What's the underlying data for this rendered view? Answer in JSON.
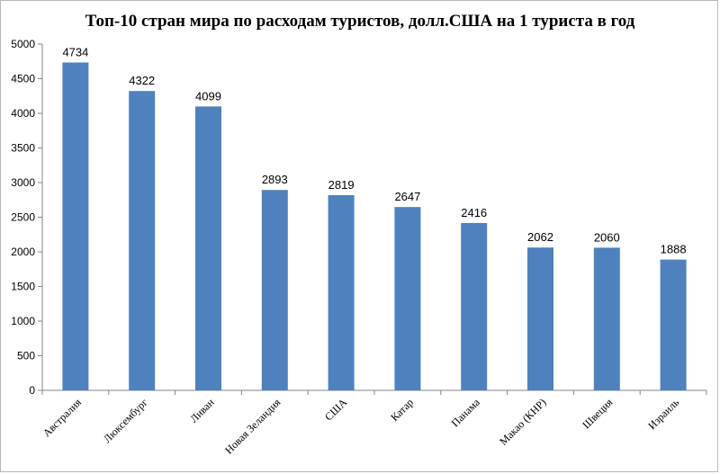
{
  "chart_data": {
    "type": "bar",
    "title": "Топ-10 стран мира по расходам туристов, долл.США на 1 туриста в год",
    "categories": [
      "Австралия",
      "Люксембург",
      "Ливан",
      "Новая Зеландия",
      "США",
      "Катар",
      "Панама",
      "Макао (КНР)",
      "Швеция",
      "Израиль"
    ],
    "values": [
      4734,
      4322,
      4099,
      2893,
      2819,
      2647,
      2416,
      2062,
      2060,
      1888
    ],
    "data_labels": [
      "4734",
      "4322",
      "4099",
      "2893",
      "2819",
      "2647",
      "2416",
      "2062",
      "2060",
      "1888"
    ],
    "ylim": [
      0,
      5000
    ],
    "yticks": [
      "0",
      "500",
      "1000",
      "1500",
      "2000",
      "2500",
      "3000",
      "3500",
      "4000",
      "4500",
      "5000"
    ],
    "xlabel": "",
    "ylabel": "",
    "grid": false,
    "legend": "none",
    "bar_color": "#4F81BD"
  }
}
